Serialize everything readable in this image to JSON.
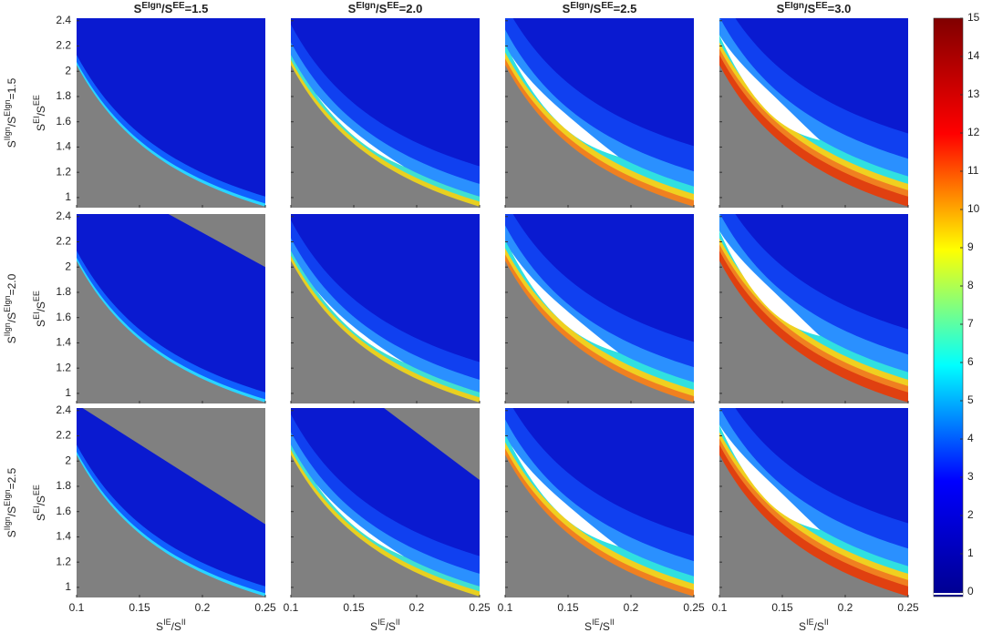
{
  "chart_data": {
    "type": "heatmap-grid",
    "column_title": {
      "a": "S",
      "a_sup": "EIgn",
      "b": "/S",
      "b_sup": "EE"
    },
    "columns": [
      "=1.5",
      "=2.0",
      "=2.5",
      "=3.0"
    ],
    "row_title": {
      "a": "S",
      "a_sup": "IIgn",
      "b": "/S",
      "b_sup": "EIgn"
    },
    "rows": [
      "=1.5",
      "=2.0",
      "=2.5"
    ],
    "x_label": {
      "a": "S",
      "a_sup": "IE",
      "b": "/S",
      "b_sup": "II"
    },
    "y_label": {
      "a": "S",
      "a_sup": "EI",
      "b": "/S",
      "b_sup": "EE"
    },
    "xlim": [
      0.1,
      0.25
    ],
    "xticks": [
      0.1,
      0.15,
      0.2,
      0.25
    ],
    "ylim": [
      0.92,
      2.42
    ],
    "yticks": [
      1,
      1.2,
      1.4,
      1.6,
      1.8,
      2,
      2.2,
      2.4
    ],
    "missing_color": "#808080",
    "colorbar": {
      "clim": [
        0,
        15
      ],
      "ticks": [
        0,
        1,
        2,
        3,
        4,
        5,
        6,
        7,
        8,
        9,
        10,
        11,
        12,
        13,
        14,
        15
      ],
      "colors": [
        "#00008f",
        "#0000ff",
        "#00ffff",
        "#ffff00",
        "#ff0000",
        "#800000"
      ]
    }
  }
}
